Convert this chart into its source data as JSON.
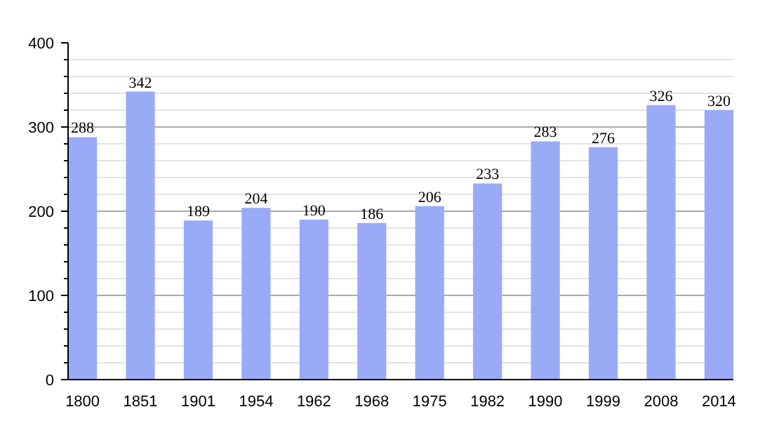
{
  "chart_data": {
    "type": "bar",
    "categories": [
      "1800",
      "1851",
      "1901",
      "1954",
      "1962",
      "1968",
      "1975",
      "1982",
      "1990",
      "1999",
      "2008",
      "2014"
    ],
    "values": [
      288,
      342,
      189,
      204,
      190,
      186,
      206,
      233,
      283,
      276,
      326,
      320
    ],
    "color": "#99aaf7",
    "ylim": [
      0,
      400
    ],
    "yticks": [
      0,
      100,
      200,
      300,
      400
    ],
    "grid": "y",
    "data_labels": true
  }
}
